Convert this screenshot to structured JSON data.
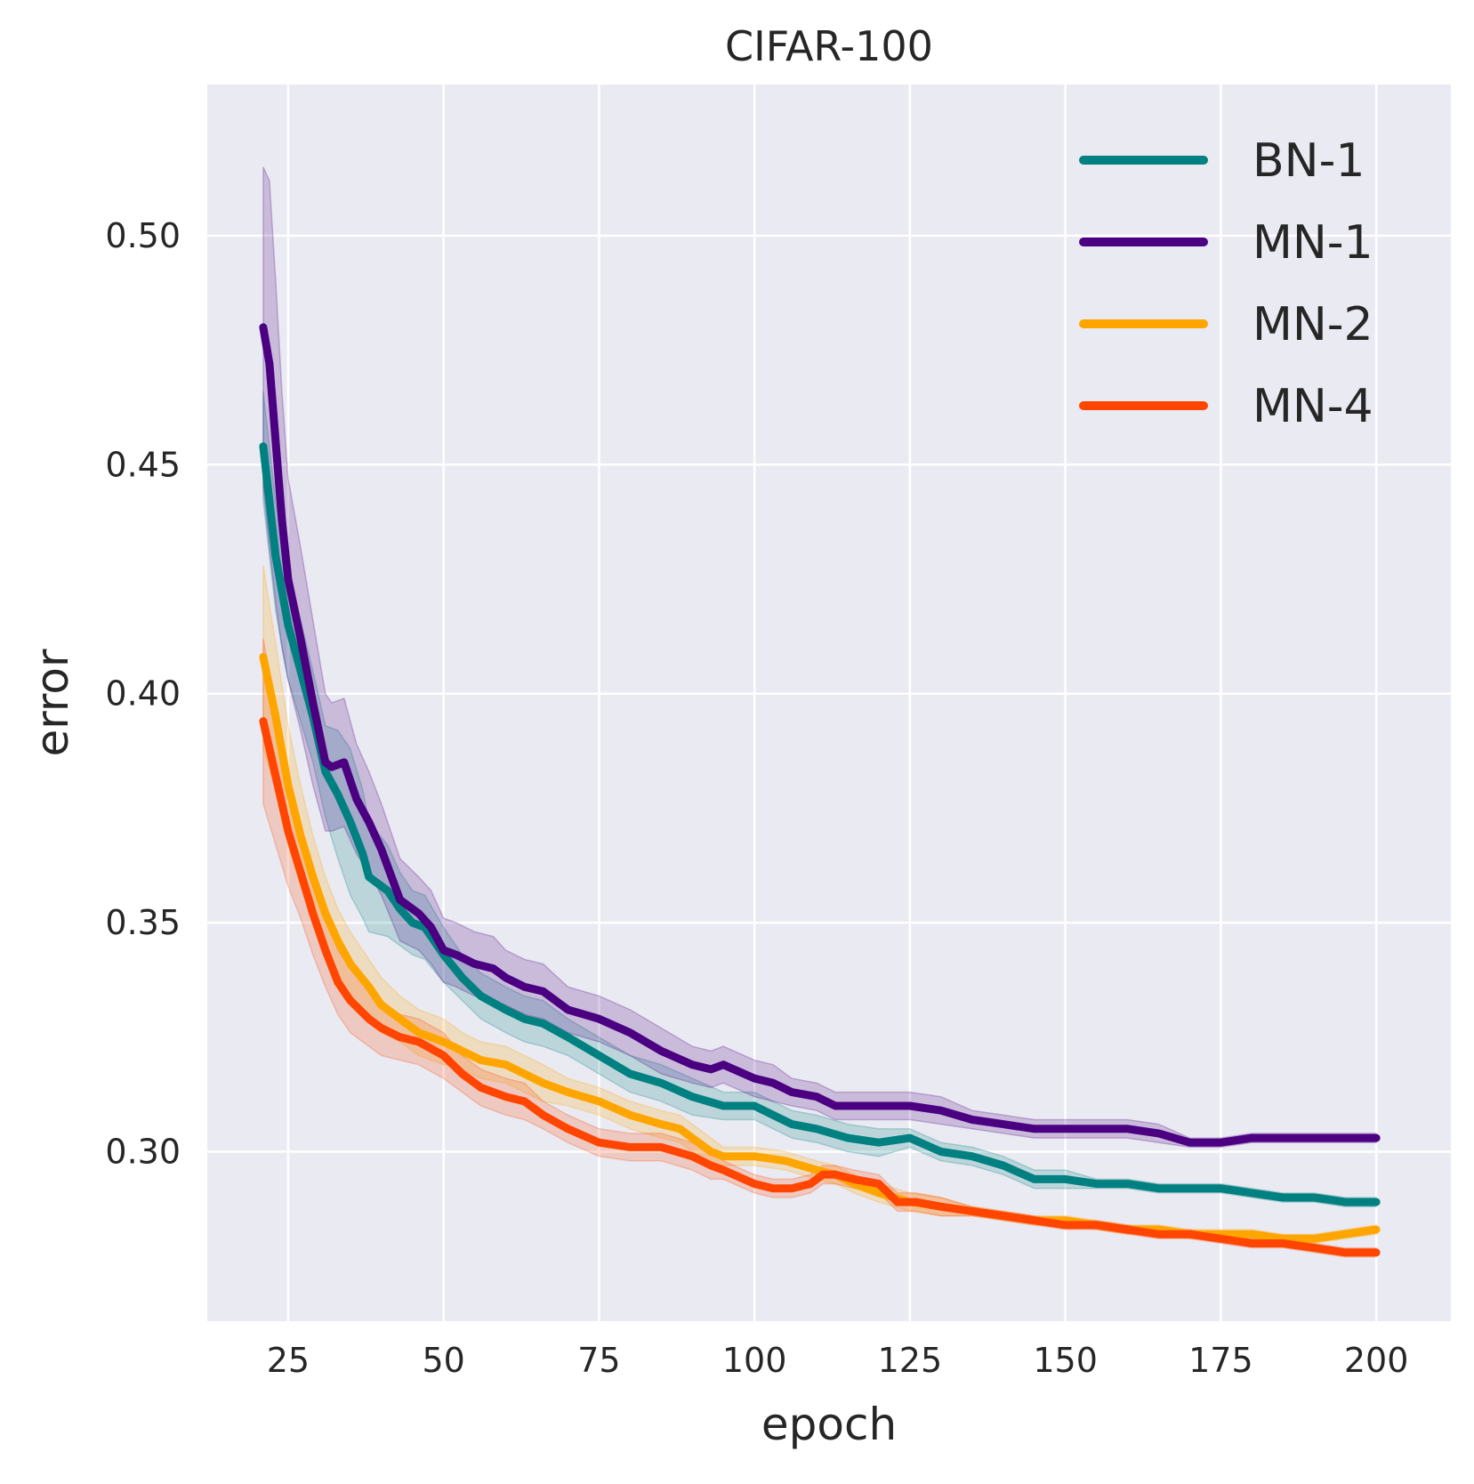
{
  "chart_data": {
    "type": "line",
    "title": "CIFAR-100",
    "xlabel": "epoch",
    "ylabel": "error",
    "xlim": [
      12,
      212
    ],
    "ylim": [
      0.263,
      0.533
    ],
    "x_ticks": [
      25,
      50,
      75,
      100,
      125,
      150,
      175,
      200
    ],
    "x_tick_labels": [
      "25",
      "50",
      "75",
      "100",
      "125",
      "150",
      "175",
      "200"
    ],
    "y_ticks": [
      0.3,
      0.35,
      0.4,
      0.45,
      0.5
    ],
    "y_tick_labels": [
      "0.30",
      "0.35",
      "0.40",
      "0.45",
      "0.50"
    ],
    "grid": true,
    "background": "#eaeaf2",
    "legend_position": "top-right",
    "series": [
      {
        "name": "BN-1",
        "color": "#008080",
        "x": [
          21,
          23,
          25,
          27,
          29,
          31,
          33,
          35,
          37,
          38,
          41,
          43,
          45,
          47,
          50,
          53,
          56,
          60,
          63,
          66,
          70,
          75,
          80,
          85,
          90,
          95,
          100,
          103,
          106,
          110,
          115,
          120,
          125,
          130,
          135,
          140,
          145,
          150,
          155,
          160,
          165,
          170,
          175,
          180,
          185,
          190,
          195,
          200
        ],
        "values": [
          0.454,
          0.43,
          0.415,
          0.405,
          0.395,
          0.383,
          0.378,
          0.372,
          0.365,
          0.36,
          0.357,
          0.353,
          0.35,
          0.349,
          0.343,
          0.338,
          0.334,
          0.331,
          0.329,
          0.328,
          0.325,
          0.321,
          0.317,
          0.315,
          0.312,
          0.31,
          0.31,
          0.308,
          0.306,
          0.305,
          0.303,
          0.302,
          0.303,
          0.3,
          0.299,
          0.297,
          0.294,
          0.294,
          0.293,
          0.293,
          0.292,
          0.292,
          0.292,
          0.291,
          0.29,
          0.29,
          0.289,
          0.289
        ],
        "band": [
          0.012,
          0.012,
          0.012,
          0.011,
          0.01,
          0.01,
          0.014,
          0.016,
          0.014,
          0.012,
          0.01,
          0.008,
          0.007,
          0.007,
          0.006,
          0.005,
          0.005,
          0.005,
          0.005,
          0.005,
          0.004,
          0.004,
          0.004,
          0.004,
          0.004,
          0.003,
          0.003,
          0.003,
          0.003,
          0.003,
          0.003,
          0.003,
          0.002,
          0.002,
          0.002,
          0.002,
          0.002,
          0.002,
          0.001,
          0.001,
          0.001,
          0.001,
          0.001,
          0.001,
          0.001,
          0.001,
          0.001,
          0.001
        ]
      },
      {
        "name": "MN-1",
        "color": "#4b0082",
        "x": [
          21,
          22,
          23,
          24,
          25,
          27,
          29,
          31,
          32,
          34,
          36,
          38,
          40,
          43,
          46,
          48,
          50,
          52,
          55,
          58,
          60,
          63,
          66,
          70,
          75,
          80,
          85,
          90,
          93,
          95,
          100,
          103,
          106,
          110,
          113,
          116,
          120,
          125,
          130,
          135,
          140,
          145,
          150,
          155,
          160,
          165,
          170,
          175,
          180,
          185,
          190,
          195,
          200
        ],
        "values": [
          0.48,
          0.472,
          0.455,
          0.438,
          0.425,
          0.412,
          0.398,
          0.385,
          0.384,
          0.385,
          0.377,
          0.372,
          0.366,
          0.355,
          0.352,
          0.349,
          0.344,
          0.343,
          0.341,
          0.34,
          0.338,
          0.336,
          0.335,
          0.331,
          0.329,
          0.326,
          0.322,
          0.319,
          0.318,
          0.319,
          0.316,
          0.315,
          0.313,
          0.312,
          0.31,
          0.31,
          0.31,
          0.31,
          0.309,
          0.307,
          0.306,
          0.305,
          0.305,
          0.305,
          0.305,
          0.304,
          0.302,
          0.302,
          0.303,
          0.303,
          0.303,
          0.303,
          0.303
        ],
        "band": [
          0.035,
          0.04,
          0.035,
          0.028,
          0.022,
          0.02,
          0.018,
          0.015,
          0.014,
          0.014,
          0.012,
          0.011,
          0.01,
          0.009,
          0.008,
          0.008,
          0.007,
          0.007,
          0.007,
          0.007,
          0.006,
          0.006,
          0.006,
          0.005,
          0.005,
          0.005,
          0.005,
          0.004,
          0.004,
          0.004,
          0.004,
          0.004,
          0.003,
          0.003,
          0.003,
          0.003,
          0.003,
          0.003,
          0.003,
          0.002,
          0.002,
          0.002,
          0.002,
          0.002,
          0.002,
          0.002,
          0.001,
          0.001,
          0.001,
          0.001,
          0.001,
          0.001,
          0.001
        ]
      },
      {
        "name": "MN-2",
        "color": "#ffa500",
        "x": [
          21,
          23,
          25,
          27,
          29,
          31,
          33,
          35,
          38,
          40,
          43,
          46,
          50,
          53,
          56,
          60,
          63,
          66,
          70,
          75,
          80,
          85,
          88,
          90,
          93,
          95,
          100,
          105,
          110,
          113,
          116,
          120,
          125,
          130,
          135,
          140,
          145,
          150,
          155,
          160,
          165,
          170,
          175,
          180,
          185,
          190,
          195,
          200
        ],
        "values": [
          0.408,
          0.395,
          0.38,
          0.369,
          0.36,
          0.352,
          0.346,
          0.341,
          0.336,
          0.332,
          0.329,
          0.326,
          0.324,
          0.322,
          0.32,
          0.319,
          0.317,
          0.315,
          0.313,
          0.311,
          0.308,
          0.306,
          0.305,
          0.303,
          0.3,
          0.299,
          0.299,
          0.298,
          0.296,
          0.295,
          0.293,
          0.291,
          0.289,
          0.288,
          0.287,
          0.286,
          0.285,
          0.285,
          0.284,
          0.283,
          0.283,
          0.282,
          0.282,
          0.282,
          0.281,
          0.281,
          0.282,
          0.283
        ],
        "band": [
          0.02,
          0.016,
          0.013,
          0.011,
          0.009,
          0.008,
          0.007,
          0.007,
          0.006,
          0.006,
          0.005,
          0.005,
          0.005,
          0.004,
          0.004,
          0.004,
          0.004,
          0.004,
          0.003,
          0.003,
          0.003,
          0.003,
          0.003,
          0.003,
          0.003,
          0.002,
          0.002,
          0.002,
          0.002,
          0.002,
          0.002,
          0.002,
          0.002,
          0.002,
          0.001,
          0.001,
          0.001,
          0.001,
          0.001,
          0.001,
          0.001,
          0.001,
          0.001,
          0.001,
          0.001,
          0.001,
          0.001,
          0.001
        ]
      },
      {
        "name": "MN-4",
        "color": "#ff4500",
        "x": [
          21,
          23,
          25,
          27,
          29,
          31,
          33,
          35,
          38,
          40,
          43,
          46,
          50,
          53,
          56,
          60,
          63,
          66,
          70,
          75,
          80,
          85,
          90,
          93,
          95,
          100,
          103,
          106,
          109,
          111,
          113,
          116,
          120,
          123,
          126,
          130,
          135,
          140,
          145,
          150,
          155,
          160,
          165,
          170,
          175,
          180,
          185,
          190,
          195,
          200
        ],
        "values": [
          0.394,
          0.382,
          0.37,
          0.361,
          0.352,
          0.344,
          0.337,
          0.333,
          0.329,
          0.327,
          0.325,
          0.324,
          0.321,
          0.317,
          0.314,
          0.312,
          0.311,
          0.308,
          0.305,
          0.302,
          0.301,
          0.301,
          0.299,
          0.297,
          0.296,
          0.293,
          0.292,
          0.292,
          0.293,
          0.295,
          0.295,
          0.294,
          0.293,
          0.289,
          0.289,
          0.288,
          0.287,
          0.286,
          0.285,
          0.284,
          0.284,
          0.283,
          0.282,
          0.282,
          0.281,
          0.28,
          0.28,
          0.279,
          0.278,
          0.278
        ],
        "band": [
          0.018,
          0.015,
          0.012,
          0.01,
          0.009,
          0.008,
          0.007,
          0.007,
          0.006,
          0.006,
          0.005,
          0.005,
          0.005,
          0.004,
          0.004,
          0.004,
          0.004,
          0.003,
          0.003,
          0.003,
          0.003,
          0.003,
          0.003,
          0.003,
          0.002,
          0.002,
          0.002,
          0.002,
          0.002,
          0.002,
          0.002,
          0.002,
          0.002,
          0.002,
          0.002,
          0.002,
          0.001,
          0.001,
          0.001,
          0.001,
          0.001,
          0.001,
          0.001,
          0.001,
          0.001,
          0.001,
          0.001,
          0.001,
          0.001,
          0.001
        ]
      }
    ]
  }
}
